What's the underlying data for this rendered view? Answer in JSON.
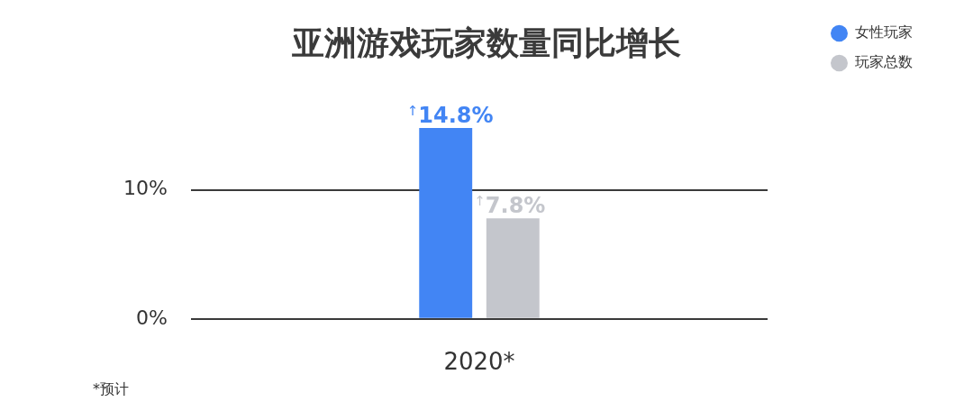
{
  "chart_data": {
    "type": "bar",
    "title": "亚洲游戏玩家数量同比增长",
    "categories": [
      "2020*"
    ],
    "series": [
      {
        "name": "女性玩家",
        "color": "#4285f4",
        "values": [
          14.8
        ],
        "value_labels": [
          "$^{↑}$14.8%"
        ]
      },
      {
        "name": "玩家总数",
        "color": "#c4c6cc",
        "values": [
          7.8
        ],
        "value_labels": [
          "$^{↑}$7.8%"
        ]
      }
    ],
    "ylim": [
      0,
      14.8
    ],
    "yticks": [
      {
        "value": 0,
        "label": "0%"
      },
      {
        "value": 10,
        "label": "10%"
      }
    ],
    "grid": "y",
    "legend": "top right",
    "annotations": [
      "*预计"
    ]
  }
}
